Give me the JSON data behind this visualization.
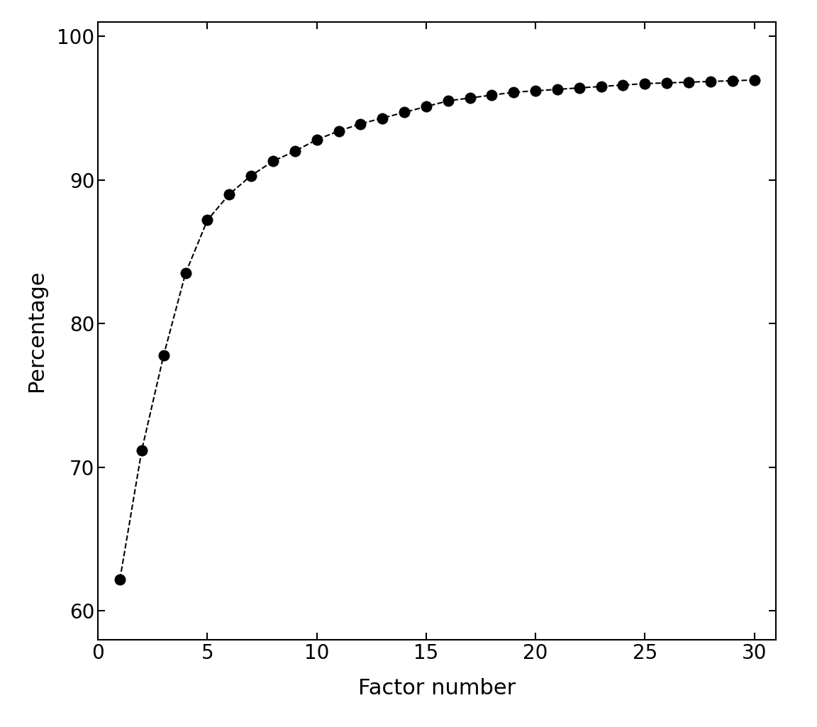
{
  "x": [
    1,
    2,
    3,
    4,
    5,
    6,
    7,
    8,
    9,
    10,
    11,
    12,
    13,
    14,
    15,
    16,
    17,
    18,
    19,
    20,
    21,
    22,
    23,
    24,
    25,
    26,
    27,
    28,
    29,
    30
  ],
  "y": [
    62.2,
    71.2,
    77.8,
    83.5,
    87.2,
    89.0,
    90.3,
    91.3,
    92.0,
    92.8,
    93.4,
    93.9,
    94.3,
    94.7,
    95.1,
    95.5,
    95.7,
    95.9,
    96.1,
    96.2,
    96.3,
    96.4,
    96.5,
    96.6,
    96.7,
    96.75,
    96.8,
    96.85,
    96.9,
    96.95
  ],
  "xlabel": "Factor number",
  "ylabel": "Percentage",
  "xlim": [
    0,
    31
  ],
  "ylim": [
    58,
    101
  ],
  "xticks": [
    0,
    5,
    10,
    15,
    20,
    25,
    30
  ],
  "yticks": [
    60,
    70,
    80,
    90,
    100
  ],
  "line_color": "#000000",
  "marker_color": "#000000",
  "marker_size": 11,
  "line_style": "--",
  "line_width": 1.5,
  "background_color": "#ffffff",
  "xlabel_fontsize": 22,
  "ylabel_fontsize": 22,
  "tick_fontsize": 20
}
